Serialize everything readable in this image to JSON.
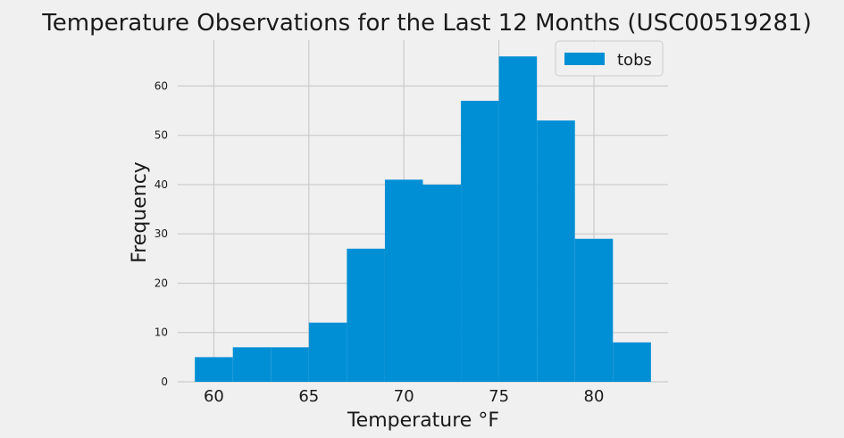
{
  "chart_data": {
    "type": "bar",
    "title": "Temperature Observations for the Last 12 Months (USC00519281)",
    "xlabel": "Temperature °F",
    "ylabel": "Frequency",
    "bin_edges": [
      59,
      61,
      63,
      65,
      67,
      69,
      71,
      73,
      75,
      77,
      79,
      81,
      83
    ],
    "series": [
      {
        "name": "tobs",
        "values": [
          5,
          7,
          7,
          12,
          27,
          41,
          40,
          57,
          66,
          53,
          29,
          8
        ]
      }
    ],
    "xlim": [
      58.1,
      83.9
    ],
    "ylim": [
      0,
      69.3
    ],
    "xticks": [
      60,
      65,
      70,
      75,
      80
    ],
    "yticks": [
      0,
      10,
      20,
      30,
      40,
      50,
      60
    ],
    "grid": true,
    "legend": "top-right",
    "colors": {
      "bar": "#008fd5",
      "background": "#f0f0f0",
      "grid": "#cbcbcb"
    }
  }
}
